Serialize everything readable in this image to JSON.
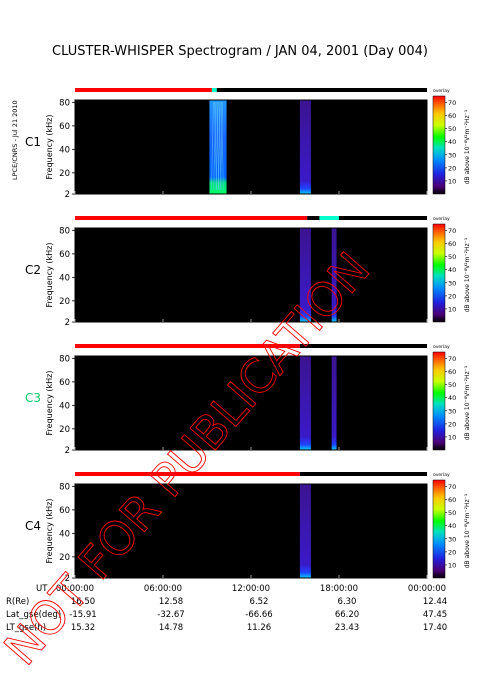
{
  "title": "CLUSTER-WHISPER Spectrogram / JAN 04, 2001 (Day 004)",
  "credit": "LPCE/CNRS - Jul 21 2010",
  "watermark": "NOT FOR PUBLICATION",
  "colors": {
    "background": "#000000",
    "status_red": "#ff0000",
    "status_black": "#000000",
    "status_cyan": "#00ffcc",
    "watermark": "#ff0000",
    "c3_label": "#00cc66"
  },
  "chart_data": {
    "type": "heatmap",
    "panels": [
      {
        "label": "C1",
        "ylabel": "Frequency (kHz)",
        "yticks": [
          2,
          20,
          40,
          60,
          80
        ],
        "ylim": [
          2,
          82
        ],
        "colorbar_label": "dB above 10⁻⁸V²m⁻²Hz⁻¹",
        "colorbar_ticks": [
          10,
          20,
          30,
          40,
          50,
          60,
          70
        ],
        "colorbar_tag": "overlay",
        "status_bar": [
          {
            "start": "00:00",
            "end": "09:20",
            "state": "red"
          },
          {
            "start": "09:20",
            "end": "09:40",
            "state": "cyan"
          },
          {
            "start": "09:40",
            "end": "24:00",
            "state": "black"
          }
        ],
        "activity": [
          {
            "start": "09:10",
            "end": "10:20",
            "fmax": 82,
            "kind": "broadband"
          },
          {
            "start": "15:20",
            "end": "16:05",
            "fmax": 82,
            "kind": "faint"
          }
        ]
      },
      {
        "label": "C2",
        "ylabel": "Frequency (kHz)",
        "yticks": [
          2,
          20,
          40,
          60,
          80
        ],
        "ylim": [
          2,
          82
        ],
        "colorbar_label": "dB above 10⁻⁸V²m⁻²Hz⁻¹",
        "colorbar_ticks": [
          10,
          20,
          30,
          40,
          50,
          60,
          70
        ],
        "colorbar_tag": "overlay",
        "status_bar": [
          {
            "start": "00:00",
            "end": "15:50",
            "state": "red"
          },
          {
            "start": "15:50",
            "end": "16:40",
            "state": "black"
          },
          {
            "start": "16:40",
            "end": "18:00",
            "state": "cyan"
          },
          {
            "start": "18:00",
            "end": "24:00",
            "state": "black"
          }
        ],
        "activity": [
          {
            "start": "15:20",
            "end": "16:05",
            "fmax": 82,
            "kind": "faint"
          },
          {
            "start": "17:30",
            "end": "17:50",
            "fmax": 82,
            "kind": "faint"
          }
        ]
      },
      {
        "label": "C3",
        "ylabel": "Frequency (kHz)",
        "yticks": [
          2,
          20,
          40,
          60,
          80
        ],
        "ylim": [
          2,
          82
        ],
        "colorbar_label": "dB above 10⁻⁸V²m⁻²Hz⁻¹",
        "colorbar_ticks": [
          10,
          20,
          30,
          40,
          50,
          60,
          70
        ],
        "colorbar_tag": "overlay",
        "status_bar": [
          {
            "start": "00:00",
            "end": "15:20",
            "state": "red"
          },
          {
            "start": "15:20",
            "end": "24:00",
            "state": "black"
          }
        ],
        "activity": [
          {
            "start": "15:20",
            "end": "16:05",
            "fmax": 82,
            "kind": "faint"
          },
          {
            "start": "17:30",
            "end": "17:50",
            "fmax": 82,
            "kind": "faint"
          }
        ]
      },
      {
        "label": "C4",
        "ylabel": "Frequency (kHz)",
        "yticks": [
          2,
          20,
          40,
          60,
          80
        ],
        "ylim": [
          2,
          82
        ],
        "colorbar_label": "dB above 10⁻⁸V²m⁻²Hz⁻¹",
        "colorbar_ticks": [
          10,
          20,
          30,
          40,
          50,
          60,
          70
        ],
        "colorbar_tag": "overlay",
        "status_bar": [
          {
            "start": "00:00",
            "end": "15:20",
            "state": "red"
          },
          {
            "start": "15:20",
            "end": "24:00",
            "state": "black"
          }
        ],
        "activity": [
          {
            "start": "15:20",
            "end": "16:05",
            "fmax": 82,
            "kind": "faint"
          }
        ]
      }
    ],
    "xlim": [
      "00:00",
      "24:00"
    ],
    "time_ticks": [
      "00:00:00",
      "06:00:00",
      "12:00:00",
      "18:00:00",
      "00:00:00"
    ],
    "ephemeris": [
      {
        "label": "UT",
        "values": [
          "00:00:00",
          "06:00:00",
          "12:00:00",
          "18:00:00",
          "00:00:00"
        ]
      },
      {
        "label": "R(Re)",
        "values": [
          "16.50",
          "12.58",
          "6.52",
          "6.30",
          "12.44"
        ]
      },
      {
        "label": "Lat_gse(deg)",
        "values": [
          "-15.91",
          "-32.67",
          "-66.66",
          "66.20",
          "47.45"
        ]
      },
      {
        "label": "LT_gse(h)",
        "values": [
          "15.32",
          "14.78",
          "11.26",
          "23.43",
          "17.40"
        ]
      }
    ]
  }
}
